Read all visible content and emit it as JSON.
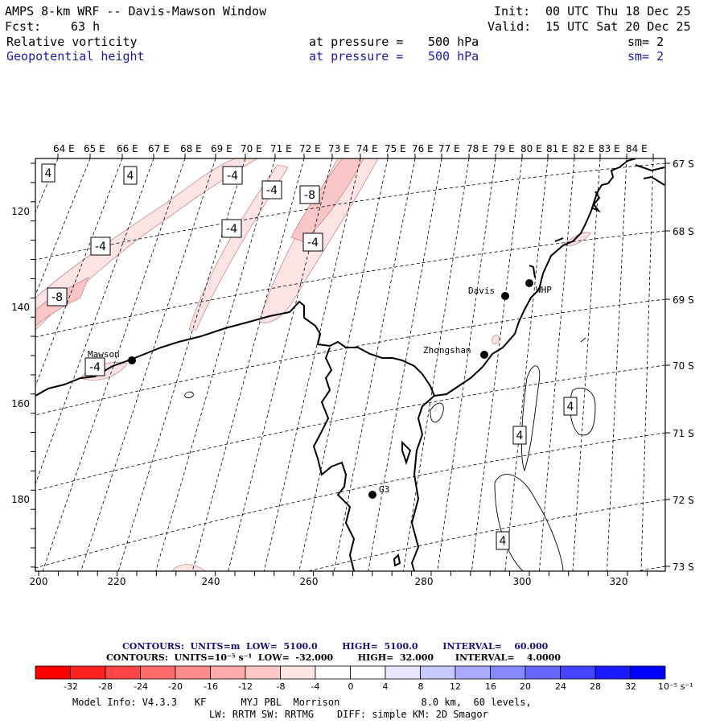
{
  "header": {
    "title": "AMPS 8-km WRF -- Davis-Mawson Window",
    "init_label": "Init:",
    "init_value": "00 UTC Thu 18 Dec 25",
    "fcst_label": "Fcst:",
    "fcst_value": "63 h",
    "valid_label": "Valid:",
    "valid_value": "15 UTC Sat 20 Dec 25",
    "field1": {
      "name": "Relative vorticity",
      "level_label": "at pressure =",
      "level_value": "500 hPa",
      "sm": "sm= 2"
    },
    "field2": {
      "name": "Geopotential height",
      "level_label": "at pressure =",
      "level_value": "500 hPa",
      "sm": "sm= 2"
    }
  },
  "map": {
    "top_axis_labels": [
      "64 E",
      "65 E",
      "66 E",
      "67 E",
      "68 E",
      "69 E",
      "70 E",
      "71 E",
      "72 E",
      "73 E",
      "74 E",
      "75 E",
      "76 E",
      "77 E",
      "78 E",
      "79 E",
      "80 E",
      "81 E",
      "82 E",
      "83 E",
      "84 E"
    ],
    "right_axis_labels": [
      "67 S",
      "68 S",
      "69 S",
      "70 S",
      "71 S",
      "72 S",
      "73 S"
    ],
    "left_axis_labels": [
      "120",
      "140",
      "160",
      "180"
    ],
    "bottom_axis_labels": [
      "200",
      "220",
      "240",
      "260",
      "280",
      "300",
      "320"
    ],
    "stations": [
      {
        "name": "Mawson"
      },
      {
        "name": "Davis"
      },
      {
        "name": "WHP"
      },
      {
        "name": "Zhongshan"
      },
      {
        "name": "G3"
      }
    ],
    "contour_labels": [
      "4",
      "4",
      "-4",
      "-4",
      "-8",
      "-4",
      "-4",
      "-4",
      "-8",
      "-4",
      "4",
      "4",
      "4"
    ]
  },
  "colorbar": {
    "contours1": "CONTOURS:  UNITS=m  LOW=  5100.0        HIGH=  5100.0        INTERVAL=    60.000",
    "contours2": "CONTOURS:  UNITS=10⁻⁵ s⁻¹  LOW=  -32.000        HIGH=  32.000       INTERVAL=    4.0000",
    "tick_labels": [
      "-32",
      "-28",
      "-24",
      "-20",
      "-16",
      "-12",
      "-8",
      "-4",
      "0",
      "4",
      "8",
      "12",
      "16",
      "20",
      "24",
      "28",
      "32"
    ],
    "units": "10⁻⁵ s⁻¹",
    "colors": [
      "#ff0000",
      "#ff2020",
      "#ff4545",
      "#ff6a6a",
      "#ff8c8c",
      "#ffaaaa",
      "#ffc8c8",
      "#ffe4e4",
      "#ffffff",
      "#ffffff",
      "#e6e6ff",
      "#c8c8ff",
      "#aaaaff",
      "#8888ff",
      "#6666ff",
      "#4444ff",
      "#1a1aff",
      "#0000ff"
    ]
  },
  "footer": {
    "line1": "Model Info: V4.3.3   KF      MYJ PBL  Morrison              8.0 km,  60 levels,",
    "line2": "LW: RRTM SW: RRTMG    DIFF: simple KM: 2D Smagor"
  }
}
